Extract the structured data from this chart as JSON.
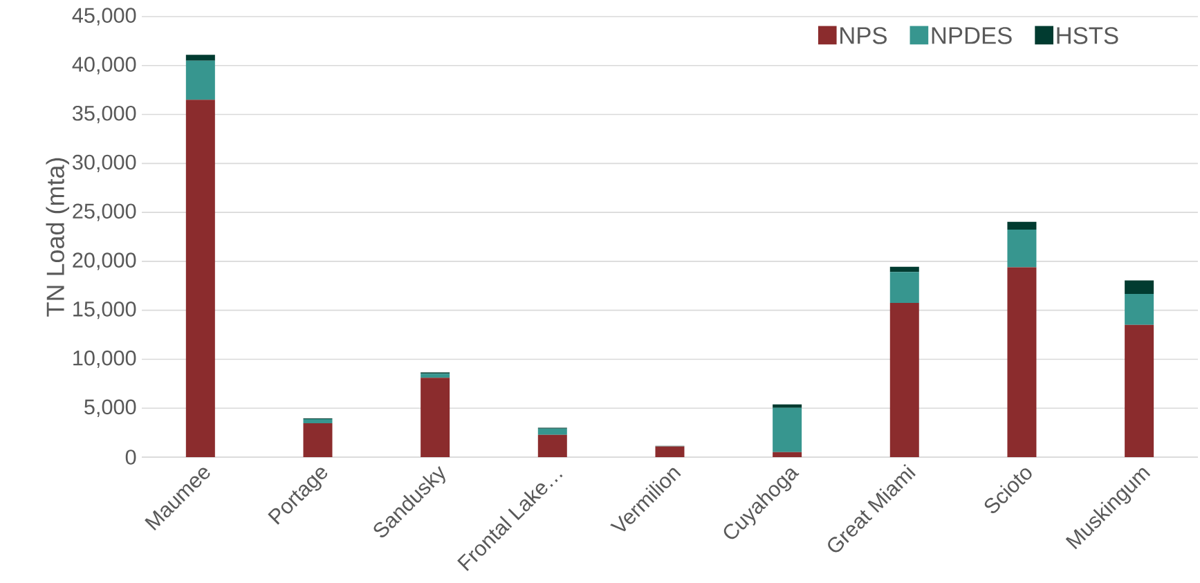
{
  "chart_data": {
    "type": "bar",
    "stacked": true,
    "ylabel": "TN Load (mta)",
    "categories": [
      "Maumee",
      "Portage",
      "Sandusky",
      "Frontal Lake…",
      "Vermilion",
      "Cuyahoga",
      "Great Miami",
      "Scioto",
      "Muskingum"
    ],
    "series": [
      {
        "name": "NPS",
        "color": "#8b2c2d",
        "values": [
          36500,
          3470,
          8100,
          2280,
          1090,
          510,
          15750,
          19390,
          13510
        ]
      },
      {
        "name": "NPDES",
        "color": "#37968f",
        "values": [
          4000,
          410,
          430,
          640,
          40,
          4520,
          3170,
          3860,
          3170
        ]
      },
      {
        "name": "HSTS",
        "color": "#013b30",
        "values": [
          600,
          70,
          120,
          90,
          20,
          350,
          530,
          790,
          1370
        ]
      }
    ],
    "ylim": [
      0,
      45000
    ],
    "yticks": [
      0,
      {
        "value": 5000,
        "label": "5,000"
      },
      {
        "value": 10000,
        "label": "10,000"
      },
      {
        "value": 15000,
        "label": "15,000"
      },
      {
        "value": 20000,
        "label": "20,000"
      },
      {
        "value": 25000,
        "label": "25,000"
      },
      {
        "value": 30000,
        "label": "30,000"
      },
      {
        "value": 35000,
        "label": "35,000"
      },
      {
        "value": 40000,
        "label": "40,000"
      },
      {
        "value": 45000,
        "label": "45,000"
      }
    ],
    "grid": "y",
    "legend": "top right"
  }
}
